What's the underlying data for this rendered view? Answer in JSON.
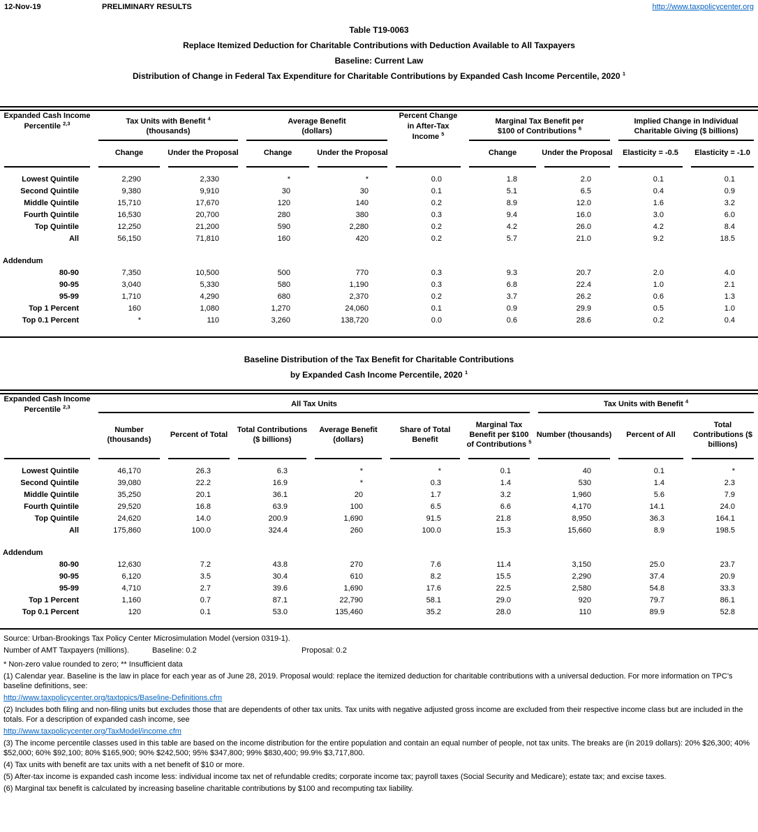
{
  "page": {
    "date": "12-Nov-19",
    "status": "PRELIMINARY RESULTS",
    "site_url": "http://www.taxpolicycenter.org"
  },
  "title": {
    "line1": "Table T19-0063",
    "line2": "Replace Itemized Deduction for Charitable Contributions with Deduction Available to All Taxpayers",
    "line3": "Baseline: Current Law",
    "line4": "Distribution of Change in Federal Tax Expenditure for Charitable Contributions by Expanded Cash Income Percentile, 2020",
    "line4_sup": "1"
  },
  "t1": {
    "rowhead": {
      "text": "Expanded Cash Income Percentile",
      "sup": "2,3"
    },
    "g_taxunits": {
      "l1": "Tax Units with Benefit",
      "sup": "4",
      "l2": "(thousands)"
    },
    "g_avg": {
      "l1": "Average Benefit",
      "l2": "(dollars)"
    },
    "pctchange": {
      "text": "Percent Change in After-Tax Income",
      "sup": "5"
    },
    "g_marginal": {
      "l1": "Marginal Tax Benefit per",
      "l2": "$100 of Contributions",
      "sup": "6"
    },
    "g_implied": {
      "l1": "Implied Change in Individual",
      "l2": "Charitable Giving ($ billions)"
    },
    "sub": {
      "change": "Change",
      "under": "Under the Proposal",
      "el05": "Elasticity = -0.5",
      "el10": "Elasticity = -1.0"
    },
    "rows": [
      {
        "label": "Lowest Quintile",
        "cells": [
          "2,290",
          "2,330",
          "*",
          "*",
          "0.0",
          "1.8",
          "2.0",
          "0.1",
          "0.1"
        ]
      },
      {
        "label": "Second Quintile",
        "cells": [
          "9,380",
          "9,910",
          "30",
          "30",
          "0.1",
          "5.1",
          "6.5",
          "0.4",
          "0.9"
        ]
      },
      {
        "label": "Middle Quintile",
        "cells": [
          "15,710",
          "17,670",
          "120",
          "140",
          "0.2",
          "8.9",
          "12.0",
          "1.6",
          "3.2"
        ]
      },
      {
        "label": "Fourth Quintile",
        "cells": [
          "16,530",
          "20,700",
          "280",
          "380",
          "0.3",
          "9.4",
          "16.0",
          "3.0",
          "6.0"
        ]
      },
      {
        "label": "Top Quintile",
        "cells": [
          "12,250",
          "21,200",
          "590",
          "2,280",
          "0.2",
          "4.2",
          "26.0",
          "4.2",
          "8.4"
        ]
      },
      {
        "label": "All",
        "cells": [
          "56,150",
          "71,810",
          "160",
          "420",
          "0.2",
          "5.7",
          "21.0",
          "9.2",
          "18.5"
        ]
      },
      {
        "type": "spacer"
      },
      {
        "type": "section",
        "label": "Addendum"
      },
      {
        "label": "80-90",
        "cells": [
          "7,350",
          "10,500",
          "500",
          "770",
          "0.3",
          "9.3",
          "20.7",
          "2.0",
          "4.0"
        ]
      },
      {
        "label": "90-95",
        "cells": [
          "3,040",
          "5,330",
          "580",
          "1,190",
          "0.3",
          "6.8",
          "22.4",
          "1.0",
          "2.1"
        ]
      },
      {
        "label": "95-99",
        "cells": [
          "1,710",
          "4,290",
          "680",
          "2,370",
          "0.2",
          "3.7",
          "26.2",
          "0.6",
          "1.3"
        ]
      },
      {
        "label": "Top 1 Percent",
        "cells": [
          "160",
          "1,080",
          "1,270",
          "24,060",
          "0.1",
          "0.9",
          "29.9",
          "0.5",
          "1.0"
        ]
      },
      {
        "label": "Top 0.1 Percent",
        "cells": [
          "*",
          "110",
          "3,260",
          "138,720",
          "0.0",
          "0.6",
          "28.6",
          "0.2",
          "0.4"
        ]
      }
    ]
  },
  "t2": {
    "title1": "Baseline Distribution of the Tax Benefit for Charitable Contributions",
    "title2": "by Expanded Cash Income Percentile, 2020",
    "title2_sup": "1",
    "rowhead": {
      "text": "Expanded Cash Income Percentile",
      "sup": "2,3"
    },
    "g_all": "All Tax Units",
    "g_wb": {
      "text": "Tax Units with Benefit",
      "sup": "4"
    },
    "sub": {
      "number": "Number (thousands)",
      "pct_total": "Percent of Total",
      "total_contrib": "Total Contributions ($ billions)",
      "avg": "Average Benefit (dollars)",
      "share": "Share of Total Benefit",
      "marginal": {
        "text": "Marginal Tax Benefit per $100 of Contributions",
        "sup": "5"
      },
      "number_wb": "Number (thousands)",
      "pct_all": "Percent of All",
      "total_contrib_wb": "Total Contributions ($ billions)"
    },
    "rows": [
      {
        "label": "Lowest Quintile",
        "cells": [
          "46,170",
          "26.3",
          "6.3",
          "*",
          "*",
          "0.1",
          "40",
          "0.1",
          "*"
        ]
      },
      {
        "label": "Second Quintile",
        "cells": [
          "39,080",
          "22.2",
          "16.9",
          "*",
          "0.3",
          "1.4",
          "530",
          "1.4",
          "2.3"
        ]
      },
      {
        "label": "Middle Quintile",
        "cells": [
          "35,250",
          "20.1",
          "36.1",
          "20",
          "1.7",
          "3.2",
          "1,960",
          "5.6",
          "7.9"
        ]
      },
      {
        "label": "Fourth Quintile",
        "cells": [
          "29,520",
          "16.8",
          "63.9",
          "100",
          "6.5",
          "6.6",
          "4,170",
          "14.1",
          "24.0"
        ]
      },
      {
        "label": "Top Quintile",
        "cells": [
          "24,620",
          "14.0",
          "200.9",
          "1,690",
          "91.5",
          "21.8",
          "8,950",
          "36.3",
          "164.1"
        ]
      },
      {
        "label": "All",
        "cells": [
          "175,860",
          "100.0",
          "324.4",
          "260",
          "100.0",
          "15.3",
          "15,660",
          "8.9",
          "198.5"
        ]
      },
      {
        "type": "spacer"
      },
      {
        "type": "section",
        "label": "Addendum"
      },
      {
        "label": "80-90",
        "cells": [
          "12,630",
          "7.2",
          "43.8",
          "270",
          "7.6",
          "11.4",
          "3,150",
          "25.0",
          "23.7"
        ]
      },
      {
        "label": "90-95",
        "cells": [
          "6,120",
          "3.5",
          "30.4",
          "610",
          "8.2",
          "15.5",
          "2,290",
          "37.4",
          "20.9"
        ]
      },
      {
        "label": "95-99",
        "cells": [
          "4,710",
          "2.7",
          "39.6",
          "1,690",
          "17.6",
          "22.5",
          "2,580",
          "54.8",
          "33.3"
        ]
      },
      {
        "label": "Top 1 Percent",
        "cells": [
          "1,160",
          "0.7",
          "87.1",
          "22,790",
          "58.1",
          "29.0",
          "920",
          "79.7",
          "86.1"
        ]
      },
      {
        "label": "Top 0.1 Percent",
        "cells": [
          "120",
          "0.1",
          "53.0",
          "135,460",
          "35.2",
          "28.0",
          "110",
          "89.9",
          "52.8"
        ]
      }
    ]
  },
  "footer": {
    "source": "Source: Urban-Brookings Tax Policy Center Microsimulation Model (version 0319-1).",
    "amt_prefix": "Number of AMT Taxpayers (millions).",
    "amt_baseline": "Baseline: 0.2",
    "amt_proposal": "Proposal: 0.2",
    "stars": "* Non-zero value rounded to zero; ** Insufficient data",
    "note1": "(1) Calendar year. Baseline is the law in place for each year as of June 28, 2019. Proposal would: replace the itemized deduction for charitable contributions with a universal deduction. For more information on TPC’s baseline definitions, see:",
    "link1": "http://www.taxpolicycenter.org/taxtopics/Baseline-Definitions.cfm",
    "note2": "(2) Includes both filing and non-filing units but excludes those that are dependents of other tax units. Tax units with negative adjusted gross income are excluded from their respective income class but are included in the totals. For a description of expanded cash income, see",
    "link2": "http://www.taxpolicycenter.org/TaxModel/income.cfm",
    "note3": "(3) The income percentile classes used in this table are based on the income distribution for the entire population and contain an equal number of people, not tax units. The breaks are (in 2019 dollars): 20% $26,300; 40% $52,000; 60% $92,100; 80% $165,900; 90% $242,500; 95% $347,800; 99% $830,400; 99.9% $3,717,800.",
    "note4": "(4) Tax units with benefit are tax units with a net benefit of $10 or more.",
    "note5": "(5) After-tax income is expanded cash income less: individual income tax net of refundable credits; corporate income tax; payroll taxes (Social Security and Medicare); estate tax; and excise taxes.",
    "note6": "(6) Marginal tax benefit is calculated by increasing baseline charitable contributions by $100 and recomputing tax liability."
  }
}
